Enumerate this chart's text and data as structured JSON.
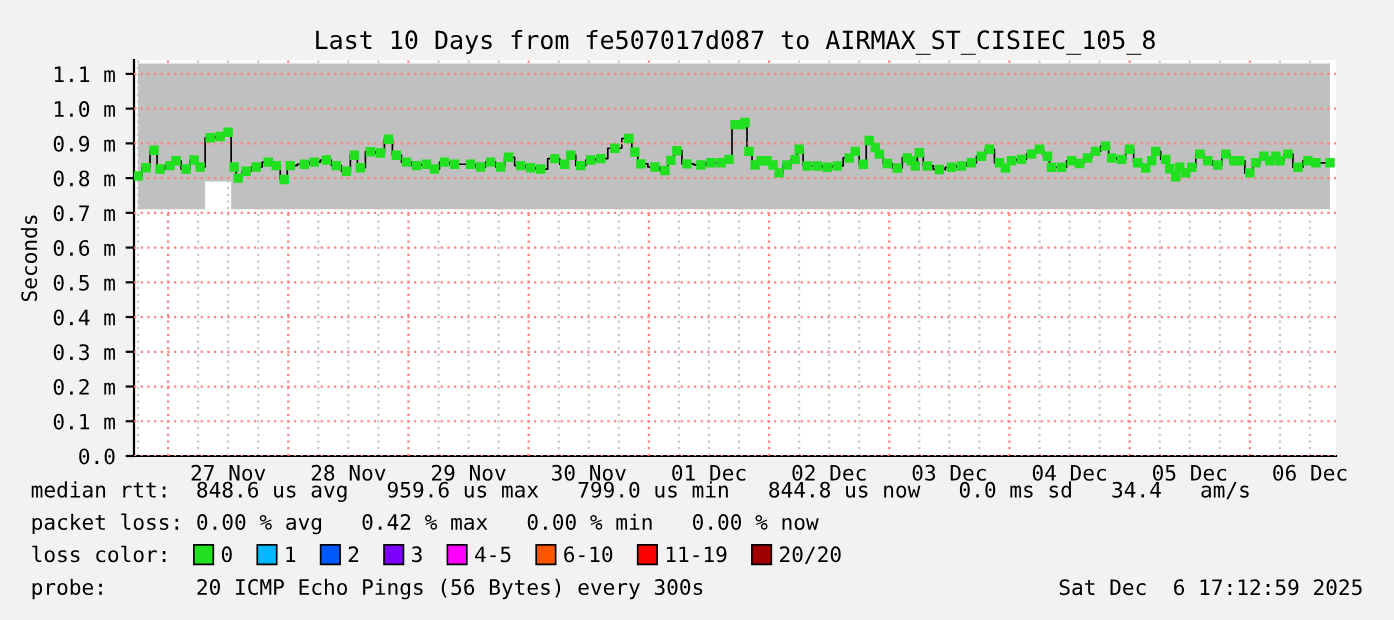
{
  "chart_data": {
    "type": "step",
    "title": "Last 10 Days from fe507017d087 to AIRMAX_ST_CISIEC_105_8",
    "ylabel": "Seconds",
    "xlim": [
      "2025-11-26T17:12",
      "2025-12-06T17:12"
    ],
    "xticks": [
      {
        "value": "2025-11-26T18:00",
        "label": null
      },
      {
        "value": "2025-11-27T00:00",
        "label": null
      },
      {
        "value": "2025-11-27T06:00",
        "label": null
      },
      {
        "value": "2025-11-27T12:00",
        "label": "27 Nov"
      },
      {
        "value": "2025-11-27T18:00",
        "label": null
      },
      {
        "value": "2025-11-28T00:00",
        "label": null
      },
      {
        "value": "2025-11-28T06:00",
        "label": null
      },
      {
        "value": "2025-11-28T12:00",
        "label": "28 Nov"
      },
      {
        "value": "2025-11-28T18:00",
        "label": null
      },
      {
        "value": "2025-11-29T00:00",
        "label": null
      },
      {
        "value": "2025-11-29T06:00",
        "label": null
      },
      {
        "value": "2025-11-29T12:00",
        "label": "29 Nov"
      },
      {
        "value": "2025-11-29T18:00",
        "label": null
      },
      {
        "value": "2025-11-30T00:00",
        "label": null
      },
      {
        "value": "2025-11-30T06:00",
        "label": null
      },
      {
        "value": "2025-11-30T12:00",
        "label": "30 Nov"
      },
      {
        "value": "2025-11-30T18:00",
        "label": null
      },
      {
        "value": "2025-12-01T00:00",
        "label": null
      },
      {
        "value": "2025-12-01T06:00",
        "label": null
      },
      {
        "value": "2025-12-01T12:00",
        "label": "01 Dec"
      },
      {
        "value": "2025-12-01T18:00",
        "label": null
      },
      {
        "value": "2025-12-02T00:00",
        "label": null
      },
      {
        "value": "2025-12-02T06:00",
        "label": null
      },
      {
        "value": "2025-12-02T12:00",
        "label": "02 Dec"
      },
      {
        "value": "2025-12-02T18:00",
        "label": null
      },
      {
        "value": "2025-12-03T00:00",
        "label": null
      },
      {
        "value": "2025-12-03T06:00",
        "label": null
      },
      {
        "value": "2025-12-03T12:00",
        "label": "03 Dec"
      },
      {
        "value": "2025-12-03T18:00",
        "label": null
      },
      {
        "value": "2025-12-04T00:00",
        "label": null
      },
      {
        "value": "2025-12-04T06:00",
        "label": null
      },
      {
        "value": "2025-12-04T12:00",
        "label": "04 Dec"
      },
      {
        "value": "2025-12-04T18:00",
        "label": null
      },
      {
        "value": "2025-12-05T00:00",
        "label": null
      },
      {
        "value": "2025-12-05T06:00",
        "label": null
      },
      {
        "value": "2025-12-05T12:00",
        "label": "05 Dec"
      },
      {
        "value": "2025-12-05T18:00",
        "label": null
      },
      {
        "value": "2025-12-06T00:00",
        "label": null
      },
      {
        "value": "2025-12-06T06:00",
        "label": null
      },
      {
        "value": "2025-12-06T12:00",
        "label": "06 Dec"
      }
    ],
    "ylim": [
      0,
      1.14
    ],
    "yticks": [
      {
        "value": 0,
        "label": "0.0"
      },
      {
        "value": 0.1,
        "label": "0.1 m"
      },
      {
        "value": 0.2,
        "label": "0.2 m"
      },
      {
        "value": 0.3,
        "label": "0.3 m"
      },
      {
        "value": 0.4,
        "label": "0.4 m"
      },
      {
        "value": 0.5,
        "label": "0.5 m"
      },
      {
        "value": 0.6,
        "label": "0.6 m"
      },
      {
        "value": 0.7,
        "label": "0.7 m"
      },
      {
        "value": 0.8,
        "label": "0.8 m"
      },
      {
        "value": 0.9,
        "label": "0.9 m"
      },
      {
        "value": 1.0,
        "label": "1.0 m"
      },
      {
        "value": 1.1,
        "label": "1.1 m"
      }
    ],
    "grid": true,
    "legend": "bottom",
    "series": [
      {
        "name": "0",
        "color": "#20e020",
        "marker": "square",
        "x": [
          "2025-11-26T18:00",
          "2025-11-26T19:36",
          "2025-11-26T21:12",
          "2025-11-26T22:24",
          "2025-11-27T00:24",
          "2025-11-27T01:36",
          "2025-11-27T03:36",
          "2025-11-27T05:12",
          "2025-11-27T06:24",
          "2025-11-27T08:24",
          "2025-11-27T10:24",
          "2025-11-27T12:00",
          "2025-11-27T13:12",
          "2025-11-27T14:00",
          "2025-11-27T15:36",
          "2025-11-27T17:36",
          "2025-11-27T20:00",
          "2025-11-27T21:36",
          "2025-11-27T23:12",
          "2025-11-28T00:24",
          "2025-11-28T03:12",
          "2025-11-28T05:12",
          "2025-11-28T07:36",
          "2025-11-28T09:36",
          "2025-11-28T11:36",
          "2025-11-28T13:12",
          "2025-11-28T14:24",
          "2025-11-28T16:24",
          "2025-11-28T18:24",
          "2025-11-28T20:00",
          "2025-11-28T21:36",
          "2025-11-28T23:36",
          "2025-11-29T01:36",
          "2025-11-29T03:36",
          "2025-11-29T05:12",
          "2025-11-29T07:12",
          "2025-11-29T09:12",
          "2025-11-29T12:24",
          "2025-11-29T14:24",
          "2025-11-29T16:24",
          "2025-11-29T18:24",
          "2025-11-29T20:00",
          "2025-11-29T22:24",
          "2025-11-30T00:24",
          "2025-11-30T02:24",
          "2025-11-30T05:12",
          "2025-11-30T07:12",
          "2025-11-30T08:24",
          "2025-11-30T10:24",
          "2025-11-30T12:24",
          "2025-11-30T14:24",
          "2025-11-30T17:12",
          "2025-11-30T20:00",
          "2025-11-30T21:12",
          "2025-11-30T22:24",
          "2025-12-01T01:12",
          "2025-12-01T03:12",
          "2025-12-01T04:24",
          "2025-12-01T05:36",
          "2025-12-01T07:36",
          "2025-12-01T10:24",
          "2025-12-01T12:24",
          "2025-12-01T14:24",
          "2025-12-01T16:00",
          "2025-12-01T17:12",
          "2025-12-01T18:24",
          "2025-12-01T19:12",
          "2025-12-01T20:00",
          "2025-12-01T21:12",
          "2025-12-01T22:24",
          "2025-12-01T23:36",
          "2025-12-02T00:48",
          "2025-12-02T02:00",
          "2025-12-02T03:36",
          "2025-12-02T05:12",
          "2025-12-02T06:00",
          "2025-12-02T07:36",
          "2025-12-02T09:36",
          "2025-12-02T11:36",
          "2025-12-02T13:36",
          "2025-12-02T16:00",
          "2025-12-02T17:12",
          "2025-12-02T18:48",
          "2025-12-02T20:00",
          "2025-12-02T21:12",
          "2025-12-02T22:00",
          "2025-12-02T23:36",
          "2025-12-03T01:36",
          "2025-12-03T03:36",
          "2025-12-03T04:24",
          "2025-12-03T05:12",
          "2025-12-03T06:00",
          "2025-12-03T07:36",
          "2025-12-03T10:00",
          "2025-12-03T12:24",
          "2025-12-03T14:24",
          "2025-12-03T16:24",
          "2025-12-03T18:24",
          "2025-12-03T20:00",
          "2025-12-03T22:00",
          "2025-12-03T23:12",
          "2025-12-04T00:24",
          "2025-12-04T02:24",
          "2025-12-04T04:24",
          "2025-12-04T06:00",
          "2025-12-04T07:36",
          "2025-12-04T08:24",
          "2025-12-04T10:24",
          "2025-12-04T12:24",
          "2025-12-04T14:00",
          "2025-12-04T15:36",
          "2025-12-04T17:12",
          "2025-12-04T19:12",
          "2025-12-04T20:24",
          "2025-12-04T22:24",
          "2025-12-05T00:00",
          "2025-12-05T01:36",
          "2025-12-05T03:12",
          "2025-12-05T04:24",
          "2025-12-05T05:12",
          "2025-12-05T07:12",
          "2025-12-05T08:00",
          "2025-12-05T09:12",
          "2025-12-05T10:00",
          "2025-12-05T11:12",
          "2025-12-05T12:24",
          "2025-12-05T14:00",
          "2025-12-05T15:36",
          "2025-12-05T17:36",
          "2025-12-05T19:12",
          "2025-12-05T20:48",
          "2025-12-05T22:00",
          "2025-12-06T00:00",
          "2025-12-06T01:12",
          "2025-12-06T02:48",
          "2025-12-06T04:00",
          "2025-12-06T05:12",
          "2025-12-06T06:00",
          "2025-12-06T07:36",
          "2025-12-06T09:36",
          "2025-12-06T11:36",
          "2025-12-06T13:12",
          "2025-12-06T16:00"
        ],
        "values": [
          0.806,
          0.83,
          0.88,
          0.826,
          0.836,
          0.85,
          0.826,
          0.852,
          0.832,
          0.916,
          0.92,
          0.932,
          0.832,
          0.8,
          0.82,
          0.832,
          0.846,
          0.836,
          0.796,
          0.836,
          0.84,
          0.846,
          0.852,
          0.836,
          0.82,
          0.866,
          0.83,
          0.876,
          0.872,
          0.912,
          0.866,
          0.846,
          0.836,
          0.84,
          0.826,
          0.846,
          0.84,
          0.84,
          0.832,
          0.846,
          0.832,
          0.86,
          0.836,
          0.83,
          0.826,
          0.856,
          0.84,
          0.866,
          0.836,
          0.852,
          0.856,
          0.886,
          0.914,
          0.875,
          0.841,
          0.832,
          0.822,
          0.851,
          0.879,
          0.841,
          0.838,
          0.844,
          0.844,
          0.854,
          0.954,
          0.954,
          0.96,
          0.877,
          0.838,
          0.85,
          0.85,
          0.838,
          0.815,
          0.838,
          0.854,
          0.883,
          0.835,
          0.835,
          0.831,
          0.835,
          0.858,
          0.877,
          0.84,
          0.908,
          0.888,
          0.869,
          0.842,
          0.829,
          0.858,
          0.85,
          0.835,
          0.873,
          0.835,
          0.825,
          0.831,
          0.835,
          0.844,
          0.863,
          0.883,
          0.844,
          0.829,
          0.85,
          0.854,
          0.869,
          0.883,
          0.863,
          0.831,
          0.831,
          0.85,
          0.842,
          0.858,
          0.877,
          0.892,
          0.858,
          0.854,
          0.883,
          0.844,
          0.829,
          0.85,
          0.877,
          0.854,
          0.827,
          0.804,
          0.831,
          0.815,
          0.831,
          0.869,
          0.85,
          0.838,
          0.869,
          0.85,
          0.85,
          0.815,
          0.844,
          0.863,
          0.85,
          0.863,
          0.85,
          0.869,
          0.831,
          0.85,
          0.844,
          0.844
        ],
        "lower": [
          0.71,
          0.71,
          0.71,
          0.71,
          0.71,
          0.71,
          0.71,
          0.71,
          0.71,
          0.79,
          0.79,
          0.79,
          0.71,
          0.71,
          0.71,
          0.71,
          0.71,
          0.71,
          0.71,
          0.71,
          0.71,
          0.71,
          0.71,
          0.71,
          0.71,
          0.71,
          0.71,
          0.71,
          0.71,
          0.71,
          0.71,
          0.71,
          0.71,
          0.71,
          0.71,
          0.71,
          0.71,
          0.71,
          0.71,
          0.71,
          0.71,
          0.71,
          0.71,
          0.71,
          0.71,
          0.71,
          0.71,
          0.71,
          0.71,
          0.71,
          0.71,
          0.71,
          0.71,
          0.71,
          0.71,
          0.71,
          0.71,
          0.71,
          0.71,
          0.71,
          0.71,
          0.71,
          0.71,
          0.71,
          0.71,
          0.71,
          0.71,
          0.71,
          0.71,
          0.71,
          0.71,
          0.71,
          0.71,
          0.71,
          0.71,
          0.71,
          0.71,
          0.71,
          0.71,
          0.71,
          0.71,
          0.71,
          0.71,
          0.71,
          0.71,
          0.71,
          0.71,
          0.71,
          0.71,
          0.71,
          0.71,
          0.71,
          0.71,
          0.71,
          0.71,
          0.71,
          0.71,
          0.71,
          0.71,
          0.71,
          0.71,
          0.71,
          0.71,
          0.71,
          0.71,
          0.71,
          0.71,
          0.71,
          0.71,
          0.71,
          0.71,
          0.71,
          0.71,
          0.71,
          0.71,
          0.71,
          0.71,
          0.71,
          0.71,
          0.71,
          0.71,
          0.71,
          0.71,
          0.71,
          0.71,
          0.71,
          0.71,
          0.71,
          0.71,
          0.71,
          0.71,
          0.71,
          0.71,
          0.71,
          0.71,
          0.71,
          0.71,
          0.71,
          0.71,
          0.71,
          0.71,
          0.71,
          0.71
        ],
        "upper": [
          1.13,
          1.13,
          1.13,
          1.13,
          1.13,
          1.13,
          1.13,
          1.13,
          1.13,
          1.13,
          1.13,
          1.13,
          1.13,
          1.13,
          1.13,
          1.13,
          1.13,
          1.13,
          1.13,
          1.13,
          1.13,
          1.13,
          1.13,
          1.13,
          1.13,
          1.13,
          1.13,
          1.13,
          1.13,
          1.13,
          1.13,
          1.13,
          1.13,
          1.13,
          1.13,
          1.13,
          1.13,
          1.13,
          1.13,
          1.13,
          1.13,
          1.13,
          1.13,
          1.13,
          1.13,
          1.13,
          1.13,
          1.13,
          1.13,
          1.13,
          1.13,
          1.13,
          1.13,
          1.13,
          1.13,
          1.13,
          1.13,
          1.13,
          1.13,
          1.13,
          1.13,
          1.13,
          1.13,
          1.13,
          1.13,
          1.13,
          1.13,
          1.13,
          1.13,
          1.13,
          1.13,
          1.13,
          1.13,
          1.13,
          1.13,
          1.13,
          1.13,
          1.13,
          1.13,
          1.13,
          1.13,
          1.13,
          1.13,
          1.13,
          1.13,
          1.13,
          1.13,
          1.13,
          1.13,
          1.13,
          1.13,
          1.13,
          1.13,
          1.13,
          1.13,
          1.13,
          1.13,
          1.13,
          1.13,
          1.13,
          1.13,
          1.13,
          1.13,
          1.13,
          1.13,
          1.13,
          1.13,
          1.13,
          1.13,
          1.13,
          1.13,
          1.13,
          1.13,
          1.13,
          1.13,
          1.13,
          1.13,
          1.13,
          1.13,
          1.13,
          1.13,
          1.13,
          1.13,
          1.13,
          1.13,
          1.13,
          1.13,
          1.13,
          1.13,
          1.13,
          1.13,
          1.13,
          1.13,
          1.13,
          1.13,
          1.13,
          1.13,
          1.13,
          1.13,
          1.13,
          1.13,
          1.13,
          1.13
        ]
      },
      {
        "name": "1",
        "color": "#00b8ff"
      },
      {
        "name": "2",
        "color": "#0059ff"
      },
      {
        "name": "3",
        "color": "#7e00ff"
      },
      {
        "name": "4-5",
        "color": "#ff00ff"
      },
      {
        "name": "6-10",
        "color": "#ff5500"
      },
      {
        "name": "11-19",
        "color": "#ff0000"
      },
      {
        "name": "20/20",
        "color": "#a10000"
      }
    ],
    "annotations": [
      "median rtt:  848.6 us avg   959.6 us max   799.0 us min   844.8 us now   0.0 ms sd   34.4   am/s",
      "packet loss: 0.00 % avg   0.42 % max   0.00 % min   0.00 % now",
      "loss color:",
      "probe:       20 ICMP Echo Pings (56 Bytes) every 300s",
      "Sat Dec  6 17:12:59 2025"
    ]
  }
}
